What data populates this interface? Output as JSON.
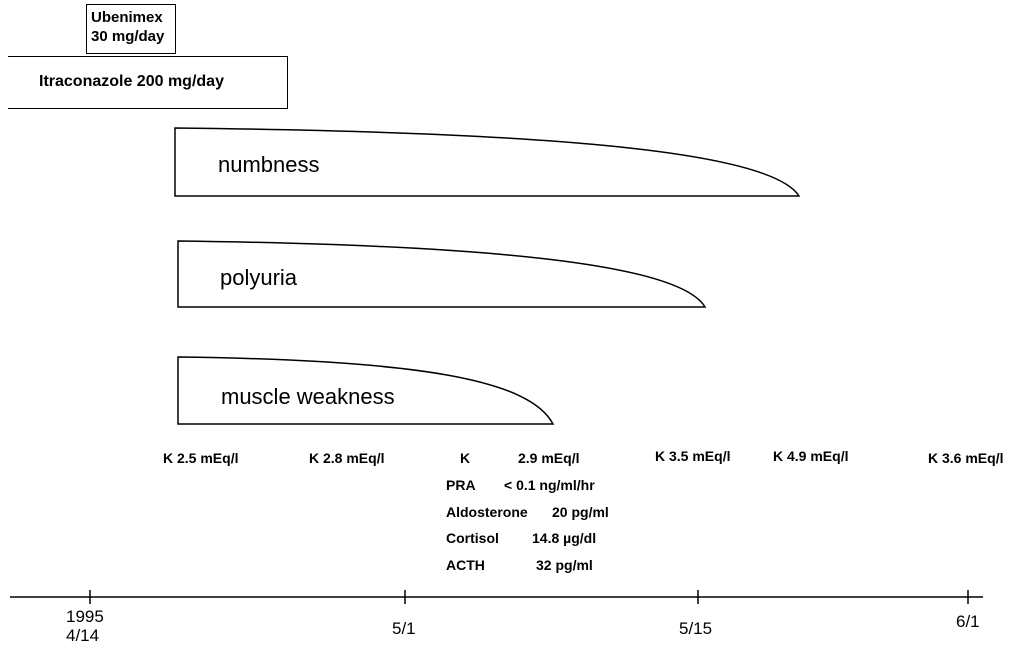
{
  "drugs": {
    "ubenimex": {
      "line1": "Ubenimex",
      "line2": "30 mg/day"
    },
    "itraconazole": {
      "label": "Itraconazole  200 mg/day"
    }
  },
  "symptoms": [
    "numbness",
    "polyuria",
    "muscle weakness"
  ],
  "labs": {
    "k_values": [
      "K 2.5 mEq/l",
      "K 2.8 mEq/l",
      "K 3.5 mEq/l",
      "K 4.9 mEq/l",
      "K 3.6 mEq/l"
    ],
    "block": [
      {
        "name": "K",
        "value": "2.9 mEq/l"
      },
      {
        "name": "PRA",
        "value": "< 0.1 ng/ml/hr"
      },
      {
        "name": "Aldosterone",
        "value": "20 pg/ml"
      },
      {
        "name": "Cortisol",
        "value": "14.8 µg/dl"
      },
      {
        "name": "ACTH",
        "value": "32 pg/ml"
      }
    ]
  },
  "timeline": {
    "year": "1995",
    "ticks": [
      "4/14",
      "5/1",
      "5/15",
      "6/1"
    ]
  }
}
